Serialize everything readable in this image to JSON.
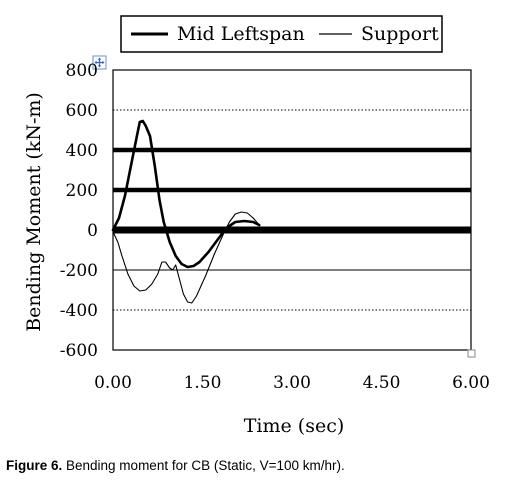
{
  "chart_data": {
    "type": "line",
    "title": "",
    "xlabel": "Time (sec)",
    "ylabel": "Bending Moment (kN-m)",
    "xlim": [
      0,
      6
    ],
    "ylim": [
      -600,
      800
    ],
    "xticks": [
      "0.00",
      "1.50",
      "3.00",
      "4.50",
      "6.00"
    ],
    "xtick_values": [
      0,
      1.5,
      3,
      4.5,
      6
    ],
    "yticks": [
      "800",
      "600",
      "400",
      "200",
      "0",
      "-200",
      "-400",
      "-600"
    ],
    "ytick_values": [
      800,
      600,
      400,
      200,
      0,
      -200,
      -400,
      -600
    ],
    "legend_position": "top",
    "gridlines": [
      {
        "y": 600,
        "style": "dotted"
      },
      {
        "y": 400,
        "style": "bold"
      },
      {
        "y": 200,
        "style": "bold"
      },
      {
        "y": 0,
        "style": "bold"
      },
      {
        "y": -200,
        "style": "solid"
      },
      {
        "y": -400,
        "style": "dotted"
      }
    ],
    "series": [
      {
        "name": "Mid Leftspan",
        "style": "thick",
        "color": "#000000",
        "points": [
          [
            0.0,
            0
          ],
          [
            0.1,
            60
          ],
          [
            0.2,
            170
          ],
          [
            0.3,
            320
          ],
          [
            0.4,
            470
          ],
          [
            0.45,
            540
          ],
          [
            0.5,
            545
          ],
          [
            0.55,
            520
          ],
          [
            0.62,
            470
          ],
          [
            0.7,
            320
          ],
          [
            0.78,
            150
          ],
          [
            0.85,
            40
          ],
          [
            0.95,
            -60
          ],
          [
            1.05,
            -130
          ],
          [
            1.15,
            -170
          ],
          [
            1.25,
            -185
          ],
          [
            1.35,
            -180
          ],
          [
            1.45,
            -160
          ],
          [
            1.6,
            -110
          ],
          [
            1.75,
            -50
          ],
          [
            1.9,
            10
          ],
          [
            2.05,
            40
          ],
          [
            2.2,
            45
          ],
          [
            2.35,
            40
          ],
          [
            2.45,
            25
          ]
        ]
      },
      {
        "name": "Support",
        "style": "thin",
        "color": "#000000",
        "points": [
          [
            0.0,
            -10
          ],
          [
            0.08,
            -60
          ],
          [
            0.15,
            -130
          ],
          [
            0.25,
            -220
          ],
          [
            0.35,
            -280
          ],
          [
            0.45,
            -305
          ],
          [
            0.55,
            -300
          ],
          [
            0.65,
            -270
          ],
          [
            0.75,
            -220
          ],
          [
            0.82,
            -160
          ],
          [
            0.88,
            -160
          ],
          [
            0.95,
            -190
          ],
          [
            1.0,
            -200
          ],
          [
            1.05,
            -175
          ],
          [
            1.1,
            -230
          ],
          [
            1.18,
            -320
          ],
          [
            1.25,
            -360
          ],
          [
            1.32,
            -365
          ],
          [
            1.4,
            -330
          ],
          [
            1.55,
            -230
          ],
          [
            1.7,
            -120
          ],
          [
            1.85,
            -20
          ],
          [
            1.95,
            40
          ],
          [
            2.05,
            80
          ],
          [
            2.15,
            90
          ],
          [
            2.25,
            85
          ],
          [
            2.35,
            60
          ],
          [
            2.45,
            25
          ]
        ]
      }
    ]
  },
  "caption": {
    "label": "Figure 6.",
    "text": " Bending moment for CB (Static, V=100 km/hr)."
  }
}
